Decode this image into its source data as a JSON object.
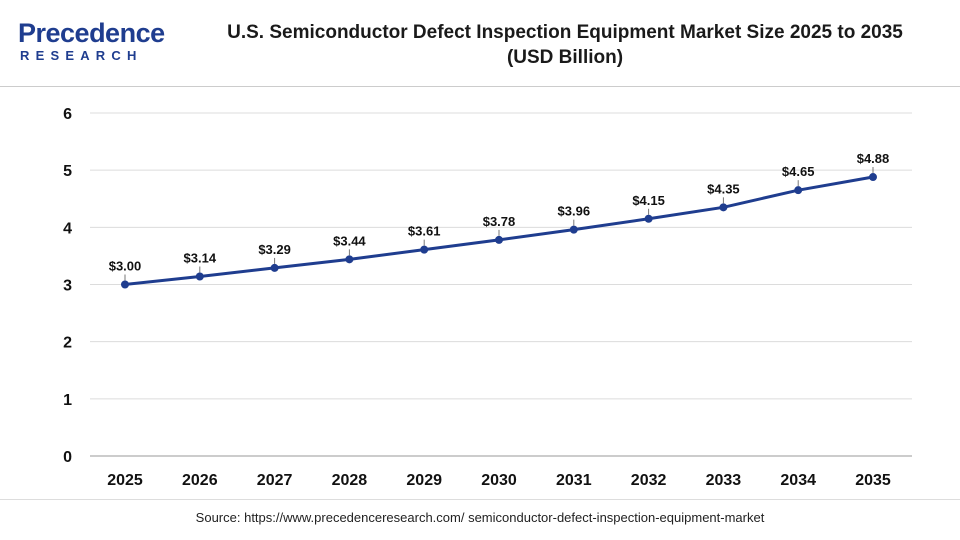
{
  "brand": {
    "name": "Precedence",
    "subtitle": "RESEARCH",
    "color": "#1f3d8f"
  },
  "chart_data": {
    "type": "line",
    "title": "U.S. Semiconductor Defect Inspection Equipment Market Size 2025 to 2035",
    "subtitle": "(USD Billion)",
    "xlabel": "",
    "ylabel": "",
    "categories": [
      "2025",
      "2026",
      "2027",
      "2028",
      "2029",
      "2030",
      "2031",
      "2032",
      "2033",
      "2034",
      "2035"
    ],
    "series": [
      {
        "values": [
          3.0,
          3.14,
          3.29,
          3.44,
          3.61,
          3.78,
          3.96,
          4.15,
          4.35,
          4.65,
          4.88
        ],
        "labels": [
          "$3.00",
          "$3.14",
          "$3.29",
          "$3.44",
          "$3.61",
          "$3.78",
          "$3.96",
          "$4.15",
          "$4.35",
          "$4.65",
          "$4.88"
        ],
        "color": "#1f3d8f"
      }
    ],
    "ylim": [
      0,
      6
    ],
    "yticks": [
      "0",
      "1",
      "2",
      "3",
      "4",
      "5",
      "6"
    ],
    "grid": true,
    "legend": "none"
  },
  "source": "Source: https://www.precedenceresearch.com/ semiconductor-defect-inspection-equipment-market"
}
